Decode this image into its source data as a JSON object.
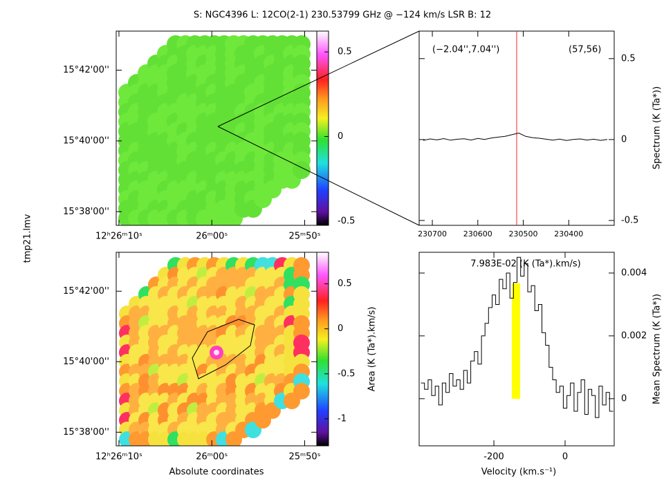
{
  "header": "S: NGC4396   L: 12CO(2-1)   230.53799 GHz @ −124 km/s LSR   B: 12",
  "side_label": "tmp21.lmv",
  "chart_data": [
    {
      "type": "map",
      "xlim": [
        186.5429,
        186.4529
      ],
      "ylim": [
        15.6269,
        15.7184
      ],
      "xticks": [
        {
          "value": 186.54167,
          "label": "12ʰ26ᵐ10ˢ"
        },
        {
          "value": 186.5,
          "label": "26ᵐ00ˢ"
        },
        {
          "value": 186.45833,
          "label": "25ᵐ50ˢ"
        }
      ],
      "yticks": [
        {
          "value": 15.7,
          "label": "15°42'00''"
        },
        {
          "value": 15.66667,
          "label": "15°40'00''"
        },
        {
          "value": 15.63333,
          "label": "15°38'00''"
        }
      ],
      "colorbar_lim": [
        -0.525,
        0.623
      ],
      "colorbar_ticks": [
        0.5,
        0,
        -0.5
      ]
    },
    {
      "type": "line",
      "text_left": "(−2.04'',7.04'')",
      "text_right": "(57,56)",
      "y_label": "Spectrum (K (Ta*))",
      "xlim": [
        230729,
        230300
      ],
      "ylim": [
        -0.53,
        0.67
      ],
      "xticks": [
        230700,
        230600,
        230500,
        230400
      ],
      "yticks": [
        0.5,
        0,
        -0.5
      ],
      "x": [
        230720,
        230705,
        230690,
        230675,
        230660,
        230645,
        230630,
        230615,
        230600,
        230585,
        230570,
        230555,
        230540,
        230525,
        230510,
        230495,
        230480,
        230465,
        230450,
        230435,
        230420,
        230405,
        230390,
        230375,
        230360,
        230345,
        230330,
        230315
      ],
      "series": [
        {
          "color": "#000000",
          "values": [
            -0.005,
            0.004,
            -0.002,
            0.006,
            -0.004,
            0.002,
            0.005,
            -0.003,
            0.007,
            0.001,
            0.01,
            0.015,
            0.02,
            0.03,
            0.04,
            0.02,
            0.012,
            0.008,
            0.002,
            -0.004,
            0.003,
            -0.006,
            0.001,
            0.004,
            -0.003,
            0.002,
            -0.005,
            0.001
          ]
        }
      ]
    },
    {
      "type": "map",
      "x_label": "Absolute coordinates",
      "xlim": [
        186.5429,
        186.4529
      ],
      "ylim": [
        15.6269,
        15.7184
      ],
      "xticks": [
        {
          "value": 186.54167,
          "label": "12ʰ26ᵐ10ˢ"
        },
        {
          "value": 186.5,
          "label": "26ᵐ00ˢ"
        },
        {
          "value": 186.45833,
          "label": "25ᵐ50ˢ"
        }
      ],
      "yticks": [
        {
          "value": 15.7,
          "label": "15°42'00''"
        },
        {
          "value": 15.66667,
          "label": "15°40'00''"
        },
        {
          "value": 15.63333,
          "label": "15°38'00''"
        }
      ],
      "colorbar_label": "Area (K (Ta*).km/s)",
      "colorbar_lim": [
        -1.3,
        0.85
      ],
      "colorbar_ticks": [
        0.5,
        0,
        -0.5,
        -1
      ]
    },
    {
      "type": "step",
      "text_top": "7.983E-02 (K (Ta*).km/s)",
      "x_label": "Velocity (km.s⁻¹)",
      "y_label": "Mean Spectrum (K (Ta*))",
      "xlim": [
        -410,
        138
      ],
      "ylim": [
        -0.0015,
        0.00466
      ],
      "xticks": [
        -200,
        0
      ],
      "yticks": [
        0,
        0.002,
        0.004
      ],
      "x": [
        -400,
        -390,
        -380,
        -370,
        -360,
        -350,
        -340,
        -330,
        -320,
        -310,
        -300,
        -290,
        -280,
        -270,
        -260,
        -250,
        -240,
        -230,
        -220,
        -210,
        -200,
        -190,
        -180,
        -170,
        -160,
        -150,
        -140,
        -130,
        -120,
        -110,
        -100,
        -90,
        -80,
        -70,
        -60,
        -50,
        -40,
        -30,
        -20,
        -10,
        0,
        10,
        20,
        30,
        40,
        50,
        60,
        70,
        80,
        90,
        100,
        110,
        120,
        130
      ],
      "series": [
        {
          "color": "#000000",
          "values": [
            0.0005,
            0.0003,
            0.0006,
            0.0001,
            0.0004,
            -0.0002,
            0.0005,
            0.0002,
            0.0008,
            0.0004,
            0.0006,
            0.0003,
            0.0009,
            0.0005,
            0.0012,
            0.0015,
            0.0011,
            0.002,
            0.0024,
            0.0029,
            0.0033,
            0.003,
            0.0038,
            0.0035,
            0.004,
            0.0032,
            0.0037,
            0.0045,
            0.0039,
            0.0043,
            0.0034,
            0.0036,
            0.0028,
            0.003,
            0.0021,
            0.0017,
            0.001,
            0.0006,
            0.0002,
            0.0004,
            -0.0003,
            0.0001,
            0.0005,
            -0.0004,
            0.0002,
            0.0006,
            -0.0005,
            0.0003,
            0.0001,
            -0.0006,
            0.0004,
            -0.0002,
            0.0002,
            -0.0004
          ]
        }
      ]
    }
  ]
}
